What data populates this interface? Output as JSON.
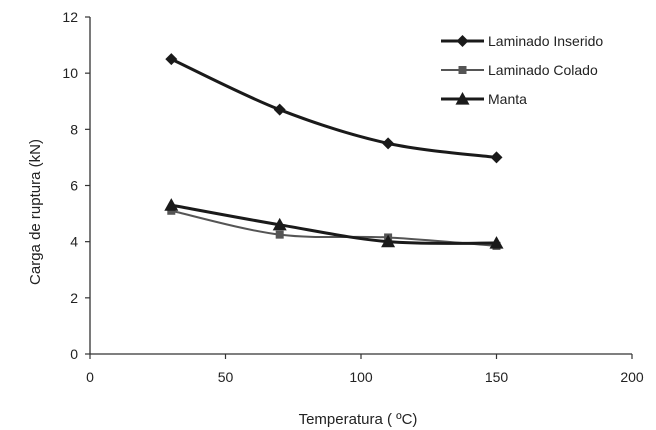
{
  "chart_data": {
    "type": "line",
    "title": "",
    "xlabel": "Temperatura ( ºC)",
    "ylabel": "Carga de ruptura (kN)",
    "xlim": [
      0,
      200
    ],
    "ylim": [
      0,
      12
    ],
    "xticks": [
      0,
      50,
      100,
      150,
      200
    ],
    "yticks": [
      0,
      2,
      4,
      6,
      8,
      10,
      12
    ],
    "x": [
      30,
      70,
      110,
      150
    ],
    "grid": false,
    "legend_position": "top-right",
    "series": [
      {
        "name": "Laminado Inserido",
        "values": [
          10.5,
          8.7,
          7.5,
          7.0
        ],
        "marker": "diamond",
        "color": "#1a1a1a",
        "width": 3
      },
      {
        "name": "Laminado Colado",
        "values": [
          5.1,
          4.25,
          4.15,
          3.85
        ],
        "marker": "square",
        "color": "#555555",
        "width": 2
      },
      {
        "name": "Manta",
        "values": [
          5.3,
          4.6,
          4.0,
          3.95
        ],
        "marker": "triangle",
        "color": "#1a1a1a",
        "width": 3
      }
    ]
  }
}
